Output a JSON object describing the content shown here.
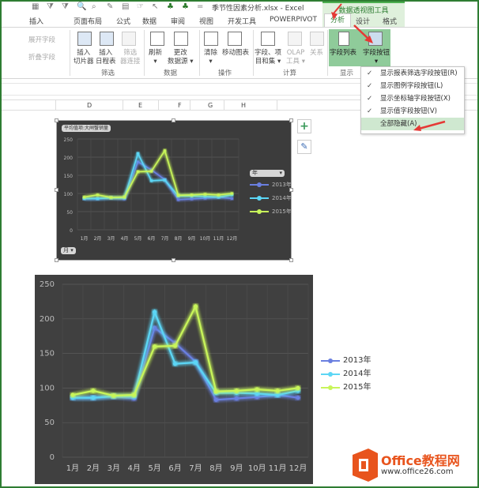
{
  "window": {
    "title": "季节性因素分析.xlsx - Excel",
    "context_tab_group": "数据透视图工具"
  },
  "tabs": [
    "插入",
    "页面布局",
    "公式",
    "数据",
    "审阅",
    "视图",
    "开发工具",
    "POWERPIVOT",
    "分析",
    "设计",
    "格式"
  ],
  "active_tab": "分析",
  "ribbon": {
    "expand_field": "展开字段",
    "collapse_field": "折叠字段",
    "insert_slicer": [
      "插入",
      "切片器"
    ],
    "insert_timeline": [
      "插入",
      "日程表"
    ],
    "filter_conn": [
      "筛选",
      "器连接"
    ],
    "group_filter": "筛选",
    "refresh": "刷新",
    "change_source": [
      "更改",
      "数据源"
    ],
    "group_data": "数据",
    "clear": "清除",
    "move_chart": "移动图表",
    "group_actions": "操作",
    "fields_items": [
      "字段、项",
      "目和集"
    ],
    "olap": [
      "OLAP",
      "工具"
    ],
    "relations": "关系",
    "group_calc": "计算",
    "field_list": "字段列表",
    "field_buttons": "字段按钮",
    "group_show": "显示"
  },
  "menu": {
    "items": [
      {
        "label": "显示报表筛选字段按钮(R)",
        "checked": true
      },
      {
        "label": "显示图例字段按钮(L)",
        "checked": true
      },
      {
        "label": "显示坐标轴字段按钮(X)",
        "checked": true
      },
      {
        "label": "显示值字段按钮(V)",
        "checked": true
      },
      {
        "label": "全部隐藏(A)",
        "checked": false,
        "hovered": true
      }
    ],
    "check_glyph": "✓"
  },
  "columns": [
    "D",
    "E",
    "F",
    "G",
    "H"
  ],
  "small_chart": {
    "value_field_button": "平均值项:大闸蟹销量",
    "legend_field_button": "年",
    "axis_field_button": "月",
    "add_element_icon": "plus-icon",
    "style_icon": "brush-icon"
  },
  "chart_data": {
    "type": "line",
    "categories": [
      "1月",
      "2月",
      "3月",
      "4月",
      "5月",
      "6月",
      "7月",
      "8月",
      "9月",
      "10月",
      "11月",
      "12月"
    ],
    "ylim": [
      0,
      250
    ],
    "yticks": [
      0,
      50,
      100,
      150,
      200,
      250
    ],
    "grid": true,
    "legend_position": "right",
    "series": [
      {
        "name": "2013年",
        "color": "#6a7fe0",
        "values": [
          86,
          86,
          88,
          85,
          187,
          165,
          138,
          83,
          85,
          87,
          90,
          86
        ]
      },
      {
        "name": "2014年",
        "color": "#5cd6f5",
        "values": [
          86,
          86,
          88,
          88,
          210,
          135,
          137,
          93,
          93,
          92,
          90,
          96
        ]
      },
      {
        "name": "2015年",
        "color": "#c8f55a",
        "values": [
          90,
          96,
          89,
          90,
          160,
          161,
          218,
          95,
          96,
          98,
          96,
          100
        ]
      }
    ]
  },
  "logo": {
    "name": "Office教程网",
    "url": "www.office26.com"
  }
}
